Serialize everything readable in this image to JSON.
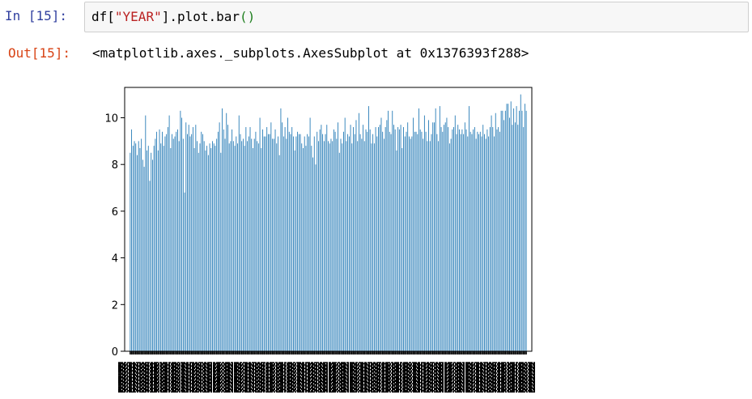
{
  "cell": {
    "in_prompt": "In  [15]:",
    "code_prefix": "df[",
    "code_string": "\"YEAR\"",
    "code_suffix": "].plot.bar",
    "code_parens": "()",
    "out_prompt": "Out[15]:",
    "output_text": "<matplotlib.axes._subplots.AxesSubplot at 0x1376393f288>"
  },
  "chart_data": {
    "type": "bar",
    "title": "",
    "xlabel": "",
    "ylabel": "",
    "ylim": [
      0,
      11.3
    ],
    "yticks": [
      0,
      2,
      4,
      6,
      8,
      10
    ],
    "bar_color": "#1f77b4",
    "series": [
      {
        "values": [
          8.5,
          9.5,
          8.8,
          9.0,
          8.9,
          8.4,
          9.0,
          8.7,
          9.1,
          8.2,
          7.9,
          10.1,
          8.6,
          8.8,
          7.3,
          8.5,
          8.2,
          8.8,
          9.1,
          9.4,
          8.6,
          9.5,
          8.9,
          9.4,
          8.8,
          9.2,
          9.3,
          9.6,
          10.1,
          8.7,
          9.3,
          9.1,
          9.2,
          9.4,
          9.5,
          9.0,
          10.3,
          10.0,
          9.1,
          6.8,
          9.8,
          9.3,
          9.7,
          9.2,
          9.3,
          9.6,
          8.7,
          9.7,
          9.0,
          8.5,
          8.9,
          9.4,
          9.3,
          9.0,
          8.6,
          8.8,
          8.4,
          8.9,
          8.7,
          9.0,
          8.9,
          8.8,
          9.1,
          9.4,
          9.8,
          8.5,
          10.4,
          9.5,
          9.1,
          10.2,
          9.7,
          8.9,
          9.0,
          9.5,
          9.0,
          8.8,
          9.2,
          8.9,
          10.1,
          9.3,
          9.0,
          9.1,
          8.8,
          9.6,
          9.0,
          9.2,
          9.6,
          9.1,
          8.7,
          9.1,
          9.4,
          9.0,
          8.9,
          10.0,
          8.7,
          9.5,
          9.2,
          9.2,
          9.6,
          9.3,
          9.3,
          9.8,
          9.1,
          9.1,
          9.5,
          8.9,
          9.2,
          8.4,
          10.4,
          9.8,
          9.2,
          9.6,
          9.1,
          10.0,
          9.4,
          9.3,
          9.6,
          9.2,
          8.6,
          9.2,
          9.4,
          9.3,
          9.3,
          8.9,
          8.7,
          9.2,
          8.8,
          9.3,
          9.2,
          10.0,
          8.8,
          8.3,
          9.2,
          8.0,
          9.4,
          9.0,
          9.5,
          9.7,
          9.3,
          9.0,
          9.3,
          9.7,
          9.0,
          8.9,
          9.1,
          9.0,
          9.5,
          9.4,
          9.1,
          9.8,
          8.5,
          9.1,
          8.9,
          9.4,
          10.0,
          9.0,
          9.3,
          9.2,
          9.7,
          8.9,
          9.6,
          9.3,
          9.9,
          9.0,
          10.2,
          9.3,
          9.1,
          9.7,
          9.0,
          9.5,
          9.4,
          10.5,
          9.5,
          8.9,
          9.3,
          8.9,
          9.6,
          9.2,
          9.6,
          9.7,
          10.0,
          9.4,
          9.1,
          9.6,
          9.9,
          10.3,
          9.4,
          9.3,
          10.3,
          9.7,
          9.5,
          8.6,
          9.6,
          9.5,
          9.7,
          8.7,
          9.6,
          9.2,
          9.4,
          9.8,
          9.2,
          9.1,
          9.2,
          10.0,
          9.4,
          9.4,
          9.3,
          10.4,
          9.5,
          9.4,
          9.1,
          10.1,
          9.4,
          9.0,
          9.9,
          9.0,
          9.3,
          9.8,
          9.8,
          10.4,
          9.3,
          9.0,
          10.5,
          9.6,
          9.4,
          9.7,
          9.8,
          10.0,
          9.6,
          8.9,
          9.1,
          9.5,
          9.6,
          10.1,
          9.3,
          9.7,
          9.5,
          9.3,
          9.5,
          9.3,
          9.8,
          9.5,
          9.2,
          10.5,
          9.4,
          9.3,
          9.5,
          9.6,
          9.1,
          9.4,
          9.3,
          9.4,
          9.2,
          9.7,
          9.3,
          9.1,
          9.5,
          9.2,
          9.6,
          10.1,
          9.6,
          9.2,
          10.2,
          9.5,
          9.6,
          9.4,
          10.3,
          10.3,
          9.9,
          10.3,
          10.6,
          10.6,
          10.0,
          10.7,
          9.7,
          10.4,
          9.8,
          10.5,
          9.7,
          10.3,
          11.0,
          10.3,
          9.6,
          10.6,
          10.3
        ]
      }
    ]
  }
}
